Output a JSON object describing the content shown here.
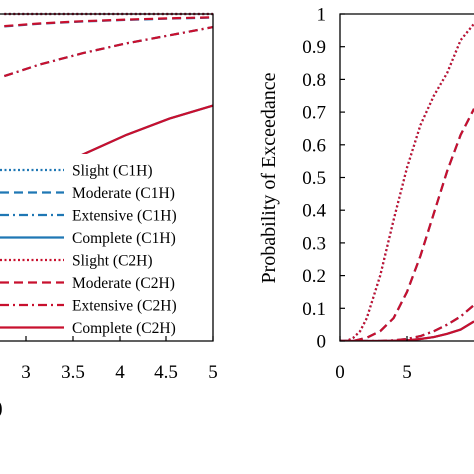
{
  "chart_data": [
    {
      "type": "line",
      "x_ticks": [
        "3",
        "3.5",
        "4",
        "4.5",
        "5"
      ],
      "x_range": [
        2.55,
        5
      ],
      "y_range": [
        0,
        1
      ],
      "xlabel_fragment": ")",
      "legend_position": "lower-right",
      "series": [
        {
          "name": "Slight (C1H)",
          "color": "#1f77b4",
          "dash": "dotted",
          "x": [
            2.6,
            3.0,
            3.5,
            4.0,
            4.5,
            5.0
          ],
          "y": [
            1.0,
            1.0,
            1.0,
            1.0,
            1.0,
            1.0
          ]
        },
        {
          "name": "Moderate (C1H)",
          "color": "#1f77b4",
          "dash": "dashed",
          "x": [
            2.6,
            3.0,
            3.5,
            4.0,
            4.5,
            5.0
          ],
          "y": [
            0.962,
            0.97,
            0.977,
            0.982,
            0.986,
            0.989
          ]
        },
        {
          "name": "Extensive (C1H)",
          "color": "#1f77b4",
          "dash": "dashdot",
          "x": [
            2.6,
            3.0,
            3.5,
            4.0,
            4.5,
            5.0
          ],
          "y": [
            0.81,
            0.845,
            0.88,
            0.91,
            0.935,
            0.96
          ]
        },
        {
          "name": "Complete (C1H)",
          "color": "#1f77b4",
          "dash": "solid",
          "x": [
            2.6,
            3.0,
            3.5,
            4.0,
            4.5,
            5.0
          ],
          "y": [
            0.43,
            0.5,
            0.57,
            0.63,
            0.68,
            0.72
          ]
        },
        {
          "name": "Slight (C2H)",
          "color": "#c8102e",
          "dash": "dotted",
          "x": [
            2.6,
            3.0,
            3.5,
            4.0,
            4.5,
            5.0
          ],
          "y": [
            1.0,
            1.0,
            1.0,
            1.0,
            1.0,
            1.0
          ]
        },
        {
          "name": "Moderate (C2H)",
          "color": "#c8102e",
          "dash": "dashed",
          "x": [
            2.6,
            3.0,
            3.5,
            4.0,
            4.5,
            5.0
          ],
          "y": [
            0.963,
            0.971,
            0.978,
            0.983,
            0.987,
            0.99
          ]
        },
        {
          "name": "Extensive (C2H)",
          "color": "#c8102e",
          "dash": "dashdot",
          "x": [
            2.6,
            3.0,
            3.5,
            4.0,
            4.5,
            5.0
          ],
          "y": [
            0.81,
            0.845,
            0.88,
            0.91,
            0.935,
            0.96
          ]
        },
        {
          "name": "Complete (C2H)",
          "color": "#c8102e",
          "dash": "solid",
          "x": [
            2.6,
            3.0,
            3.5,
            4.0,
            4.5,
            5.0
          ],
          "y": [
            0.43,
            0.5,
            0.57,
            0.63,
            0.68,
            0.72
          ]
        }
      ]
    },
    {
      "type": "line",
      "ylabel": "Probability of Exceedance",
      "x_ticks": [
        "0",
        "5"
      ],
      "y_ticks": [
        "0",
        "0.1",
        "0.2",
        "0.3",
        "0.4",
        "0.5",
        "0.6",
        "0.7",
        "0.8",
        "0.9",
        "1"
      ],
      "x_range": [
        0,
        10
      ],
      "y_range": [
        0,
        1
      ],
      "series": [
        {
          "name": "Slight (C1H)",
          "color": "#1f77b4",
          "dash": "dotted",
          "x": [
            0,
            0.5,
            1,
            1.5,
            2,
            3,
            4,
            5,
            6,
            7,
            8,
            9,
            10
          ],
          "y": [
            0,
            0.0,
            0.01,
            0.03,
            0.07,
            0.2,
            0.37,
            0.53,
            0.66,
            0.75,
            0.82,
            0.92,
            0.97
          ]
        },
        {
          "name": "Moderate (C1H)",
          "color": "#1f77b4",
          "dash": "dashed",
          "x": [
            0,
            1,
            2,
            3,
            4,
            5,
            6,
            7,
            8,
            9,
            10
          ],
          "y": [
            0,
            0.0,
            0.01,
            0.03,
            0.07,
            0.15,
            0.26,
            0.39,
            0.52,
            0.63,
            0.71
          ]
        },
        {
          "name": "Extensive (C1H)",
          "color": "#1f77b4",
          "dash": "dashdot",
          "x": [
            0,
            1,
            2,
            3,
            4,
            5,
            6,
            7,
            8,
            9,
            10
          ],
          "y": [
            0,
            0.0,
            0.0,
            0.0,
            0.002,
            0.006,
            0.015,
            0.03,
            0.05,
            0.075,
            0.11
          ]
        },
        {
          "name": "Complete (C1H)",
          "color": "#1f77b4",
          "dash": "solid",
          "x": [
            0,
            1,
            2,
            3,
            4,
            5,
            6,
            7,
            8,
            9,
            10
          ],
          "y": [
            0,
            0.0,
            0.0,
            0.0,
            0.001,
            0.002,
            0.006,
            0.012,
            0.022,
            0.035,
            0.06
          ]
        },
        {
          "name": "Slight (C2H)",
          "color": "#c8102e",
          "dash": "dotted",
          "x": [
            0,
            0.5,
            1,
            1.5,
            2,
            3,
            4,
            5,
            6,
            7,
            8,
            9,
            10
          ],
          "y": [
            0,
            0.0,
            0.01,
            0.03,
            0.07,
            0.2,
            0.37,
            0.53,
            0.66,
            0.75,
            0.82,
            0.92,
            0.97
          ]
        },
        {
          "name": "Moderate (C2H)",
          "color": "#c8102e",
          "dash": "dashed",
          "x": [
            0,
            1,
            2,
            3,
            4,
            5,
            6,
            7,
            8,
            9,
            10
          ],
          "y": [
            0,
            0.0,
            0.01,
            0.03,
            0.07,
            0.15,
            0.26,
            0.39,
            0.52,
            0.63,
            0.71
          ]
        },
        {
          "name": "Extensive (C2H)",
          "color": "#c8102e",
          "dash": "dashdot",
          "x": [
            0,
            1,
            2,
            3,
            4,
            5,
            6,
            7,
            8,
            9,
            10
          ],
          "y": [
            0,
            0.0,
            0.0,
            0.0,
            0.002,
            0.006,
            0.015,
            0.03,
            0.05,
            0.075,
            0.11
          ]
        },
        {
          "name": "Complete (C2H)",
          "color": "#c8102e",
          "dash": "solid",
          "x": [
            0,
            1,
            2,
            3,
            4,
            5,
            6,
            7,
            8,
            9,
            10
          ],
          "y": [
            0,
            0.0,
            0.0,
            0.0,
            0.001,
            0.002,
            0.006,
            0.012,
            0.022,
            0.035,
            0.06
          ]
        }
      ]
    }
  ]
}
